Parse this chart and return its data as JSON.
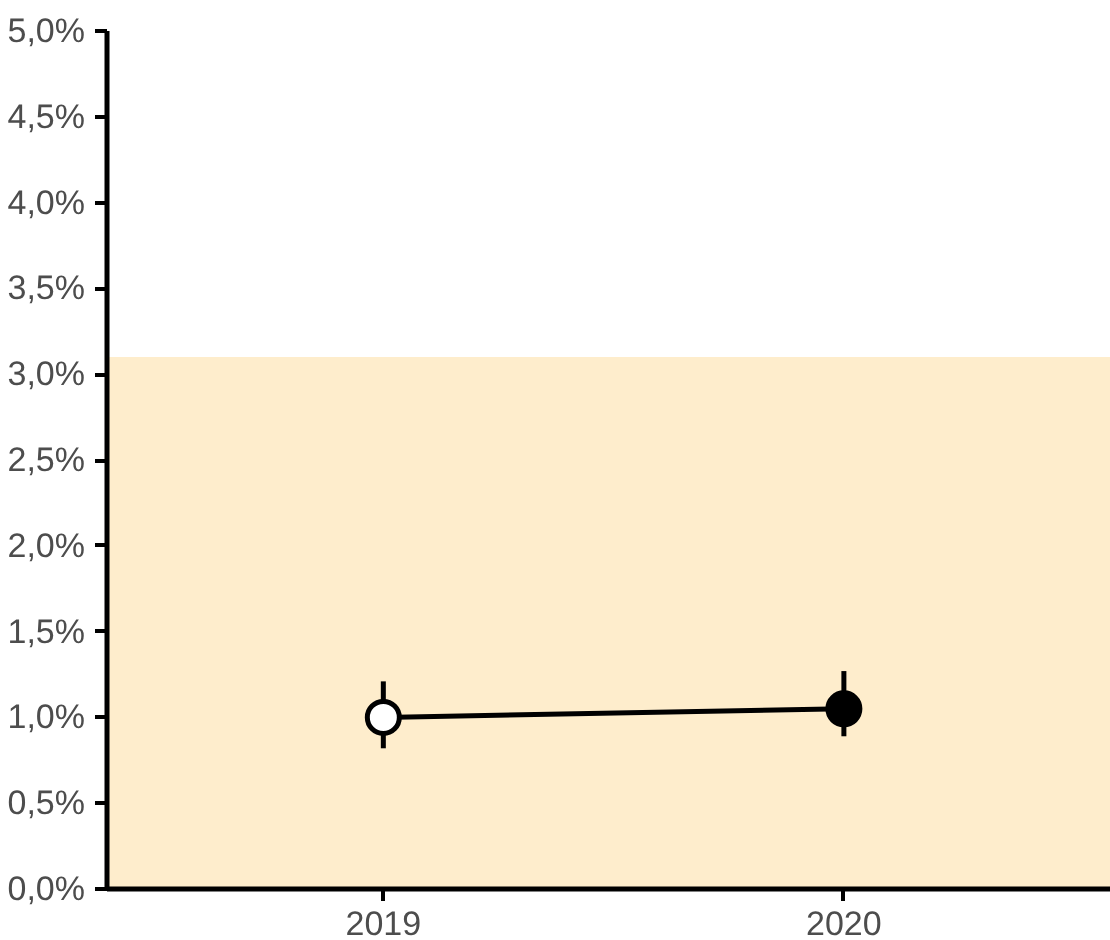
{
  "chart_data": {
    "type": "line",
    "categories": [
      "2019",
      "2020"
    ],
    "series": [
      {
        "color": "#000000",
        "colors": [
          "#ffffff",
          "#000000"
        ],
        "values": [
          1.0,
          1.05
        ],
        "errors": [
          [
            0.82,
            1.21
          ],
          [
            0.89,
            1.27
          ]
        ]
      }
    ],
    "ylim": [
      0,
      5
    ],
    "yticks": [
      {
        "value": 0,
        "label": "0,0%"
      },
      {
        "value": 0.5,
        "label": "0,5%"
      },
      {
        "value": 1,
        "label": "1,0%"
      },
      {
        "value": 1.5,
        "label": "1,5%"
      },
      {
        "value": 2,
        "label": "2,0%"
      },
      {
        "value": 2.5,
        "label": "2,5%"
      },
      {
        "value": 3,
        "label": "3,0%"
      },
      {
        "value": 3.5,
        "label": "3,5%"
      },
      {
        "value": 4,
        "label": "4,0%"
      },
      {
        "value": 4.5,
        "label": "4,5%"
      },
      {
        "value": 5,
        "label": "5,0%"
      }
    ],
    "bands": [
      {
        "axis": "y",
        "from": 0,
        "to": 3.1,
        "color": "#feedcc"
      }
    ],
    "grid": false,
    "marker": "circle",
    "line_style": "solid"
  }
}
